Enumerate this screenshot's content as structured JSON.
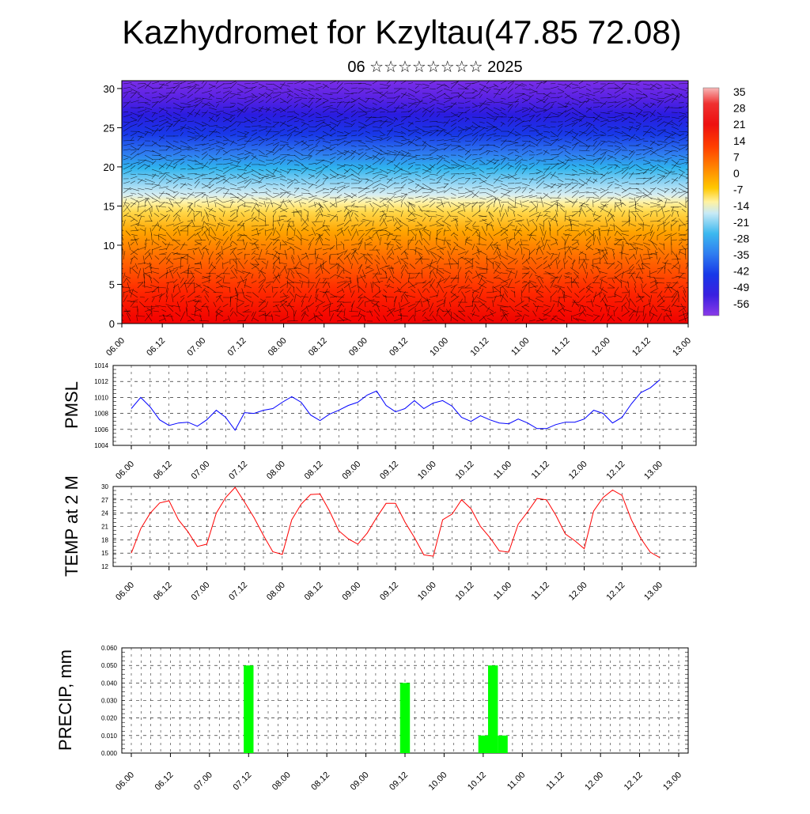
{
  "header": {
    "title": "Kazhydromet for Kzyltau(47.85 72.08)",
    "subtitle": "06 ☆☆☆☆☆☆☆☆ 2025"
  },
  "time_ticks": [
    "06.00",
    "06.12",
    "07.00",
    "07.12",
    "08.00",
    "08.12",
    "09.00",
    "09.12",
    "10.00",
    "10.12",
    "11.00",
    "11.12",
    "12.00",
    "12.12",
    "13.00"
  ],
  "chart_data": [
    {
      "type": "heatmap",
      "name": "temperature-wind-cross-section",
      "x_ticks": [
        "06.00",
        "06.12",
        "07.00",
        "07.12",
        "08.00",
        "08.12",
        "09.00",
        "09.12",
        "10.00",
        "10.12",
        "11.00",
        "11.12",
        "12.00",
        "12.12",
        "13.00"
      ],
      "y_ticks": [
        0,
        5,
        10,
        15,
        20,
        25,
        30
      ],
      "ylim": [
        0,
        31
      ],
      "colorbar": {
        "labels": [
          "35",
          "28",
          "21",
          "14",
          "7",
          "0",
          "-7",
          "-14",
          "-21",
          "-28",
          "-35",
          "-42",
          "-49",
          "-56"
        ],
        "range": [
          -60,
          40
        ]
      },
      "overlay": "wind vectors"
    },
    {
      "type": "line",
      "ylabel": "PMSL",
      "ylim": [
        1004,
        1014
      ],
      "y_ticks": [
        "1004",
        "1006",
        "1008",
        "1010",
        "1012",
        "1014"
      ],
      "color": "#0000ff",
      "values": [
        1008.6,
        1010.0,
        1008.8,
        1007.2,
        1006.5,
        1006.8,
        1006.9,
        1006.4,
        1007.2,
        1008.4,
        1007.5,
        1005.9,
        1008.1,
        1008.0,
        1008.4,
        1008.6,
        1009.4,
        1010.1,
        1009.4,
        1007.8,
        1007.1,
        1007.9,
        1008.4,
        1009.0,
        1009.4,
        1010.3,
        1010.8,
        1009.0,
        1008.2,
        1008.6,
        1009.6,
        1008.6,
        1009.3,
        1009.6,
        1008.9,
        1007.5,
        1007.0,
        1007.7,
        1007.2,
        1006.8,
        1006.7,
        1007.3,
        1006.8,
        1006.1,
        1006.1,
        1006.6,
        1006.9,
        1006.9,
        1007.3,
        1008.4,
        1008.0,
        1006.8,
        1007.5,
        1009.2,
        1010.6,
        1011.2,
        1012.2
      ]
    },
    {
      "type": "line",
      "ylabel": "TEMP at 2 M",
      "ylim": [
        12,
        30
      ],
      "y_ticks": [
        "12",
        "15",
        "18",
        "21",
        "24",
        "27",
        "30"
      ],
      "color": "#ff0000",
      "values": [
        15.0,
        20.5,
        24.0,
        26.3,
        26.8,
        22.5,
        19.8,
        16.5,
        17.0,
        24.0,
        27.5,
        29.8,
        26.5,
        23.0,
        19.0,
        15.3,
        14.7,
        22.5,
        26.0,
        28.2,
        28.3,
        24.5,
        20.0,
        18.2,
        17.0,
        19.5,
        23.0,
        26.2,
        26.2,
        22.0,
        18.5,
        14.6,
        14.3,
        22.5,
        23.8,
        27.0,
        25.0,
        21.0,
        18.5,
        15.5,
        15.2,
        21.5,
        24.3,
        27.3,
        27.0,
        23.5,
        19.3,
        17.8,
        16.0,
        24.5,
        27.5,
        29.2,
        28.0,
        22.5,
        18.3,
        15.2,
        14.0
      ]
    },
    {
      "type": "bar",
      "ylabel": "PRECIP, mm",
      "ylim": [
        0,
        0.06
      ],
      "y_ticks": [
        "0.000",
        "0.010",
        "0.020",
        "0.030",
        "0.040",
        "0.050",
        "0.060"
      ],
      "color": "#00ff00",
      "bars": [
        {
          "step": 12,
          "value": 0.05
        },
        {
          "step": 28,
          "value": 0.04
        },
        {
          "step": 36,
          "value": 0.01
        },
        {
          "step": 37,
          "value": 0.05
        },
        {
          "step": 38,
          "value": 0.01
        }
      ]
    }
  ]
}
